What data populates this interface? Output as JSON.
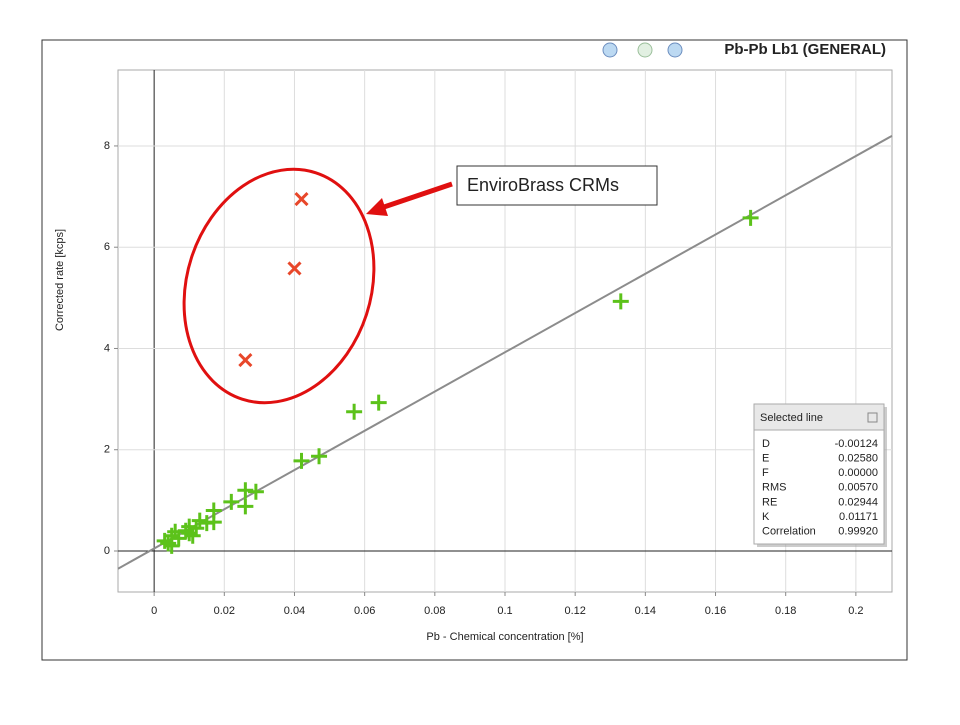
{
  "chart_data": {
    "type": "scatter",
    "title": "Pb-Pb Lb1 (GENERAL)",
    "xlabel": "Pb - Chemical concentration [%]",
    "ylabel": "Corrected rate [kcps]",
    "xlim": [
      -0.0103,
      0.2103
    ],
    "ylim": [
      -0.81,
      9.5
    ],
    "xticks": [
      0,
      0.02,
      0.04,
      0.06,
      0.08,
      0.1,
      0.12,
      0.14,
      0.16,
      0.18,
      0.2
    ],
    "yticks": [
      0,
      2,
      4,
      6,
      8
    ],
    "grid": true,
    "fit": {
      "color": "#8c8c8c",
      "x": [
        -0.0103,
        0.2103
      ],
      "y": [
        -0.35,
        8.2
      ]
    },
    "series": [
      {
        "color": "#5cc21a",
        "marker": "plus",
        "x": [
          0.17,
          0.133,
          0.064,
          0.057,
          0.047,
          0.042,
          0.029,
          0.026,
          0.026,
          0.022,
          0.017,
          0.017,
          0.015,
          0.013,
          0.012,
          0.01,
          0.01,
          0.009,
          0.006,
          0.005,
          0.004,
          0.003,
          0.005,
          0.007,
          0.011
        ],
        "values": [
          6.58,
          4.93,
          2.93,
          2.75,
          1.87,
          1.78,
          1.17,
          1.2,
          0.88,
          0.97,
          0.8,
          0.57,
          0.55,
          0.6,
          0.45,
          0.48,
          0.35,
          0.4,
          0.38,
          0.3,
          0.15,
          0.2,
          0.1,
          0.25,
          0.3
        ]
      },
      {
        "color": "#e8472a",
        "marker": "cross",
        "x": [
          0.026,
          0.04,
          0.042
        ],
        "values": [
          3.77,
          5.58,
          6.95
        ]
      }
    ],
    "annotation": "EnviroBrass CRMs"
  },
  "panel": {
    "title": "Selected line",
    "rows": [
      [
        "D",
        "-0.00124"
      ],
      [
        "E",
        "0.02580"
      ],
      [
        "F",
        "0.00000"
      ],
      [
        "RMS",
        "0.00570"
      ],
      [
        "RE",
        "0.02944"
      ],
      [
        "K",
        "0.01171"
      ],
      [
        "Correlation",
        "0.99920"
      ]
    ]
  }
}
